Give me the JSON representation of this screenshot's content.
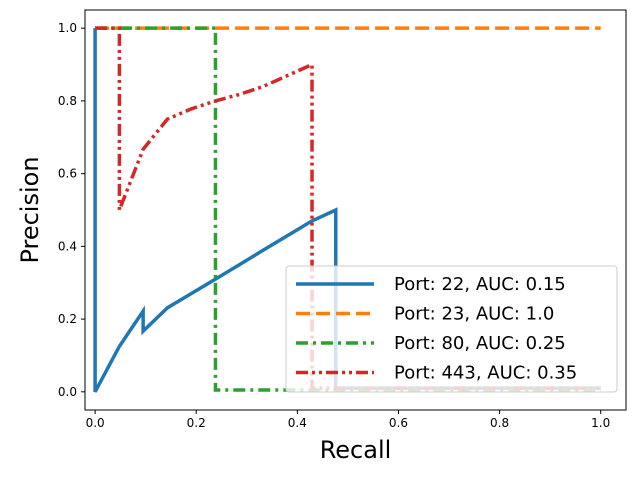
{
  "chart_data": {
    "type": "line",
    "xlabel": "Recall",
    "ylabel": "Precision",
    "xlim": [
      -0.02,
      1.05
    ],
    "ylim": [
      -0.05,
      1.05
    ],
    "x_ticks": [
      "0.0",
      "0.2",
      "0.4",
      "0.6",
      "0.8",
      "1.0"
    ],
    "y_ticks": [
      "0.0",
      "0.2",
      "0.4",
      "0.6",
      "0.8",
      "1.0"
    ],
    "grid": false,
    "legend_position": "lower-right",
    "series": [
      {
        "name": "Port: 22, AUC: 0.15",
        "color": "#1f77b4",
        "dash": "solid",
        "x": [
          0.0,
          0.0,
          0.0,
          0.048,
          0.095,
          0.095,
          0.143,
          0.19,
          0.238,
          0.286,
          0.333,
          0.381,
          0.429,
          0.476,
          0.476,
          1.0
        ],
        "y": [
          1.0,
          0.0,
          0.0,
          0.125,
          0.222,
          0.167,
          0.231,
          0.27,
          0.31,
          0.35,
          0.39,
          0.43,
          0.47,
          0.5,
          0.01,
          0.01
        ]
      },
      {
        "name": "Port: 23, AUC: 1.0",
        "color": "#ff7f0e",
        "dash": "dashed",
        "x": [
          0.0,
          1.0
        ],
        "y": [
          1.0,
          1.0
        ]
      },
      {
        "name": "Port: 80, AUC: 0.25",
        "color": "#2ca02c",
        "dash": "dashdot",
        "x": [
          0.0,
          0.238,
          0.238,
          1.0
        ],
        "y": [
          1.0,
          1.0,
          0.005,
          0.005
        ]
      },
      {
        "name": "Port: 443, AUC: 0.35",
        "color": "#d62728",
        "dash": "dashdotdot",
        "x": [
          0.0,
          0.048,
          0.048,
          0.095,
          0.143,
          0.19,
          0.238,
          0.286,
          0.333,
          0.381,
          0.429,
          0.429,
          1.0
        ],
        "y": [
          1.0,
          1.0,
          0.5,
          0.667,
          0.75,
          0.778,
          0.8,
          0.818,
          0.84,
          0.87,
          0.9,
          0.01,
          0.01
        ]
      }
    ]
  }
}
